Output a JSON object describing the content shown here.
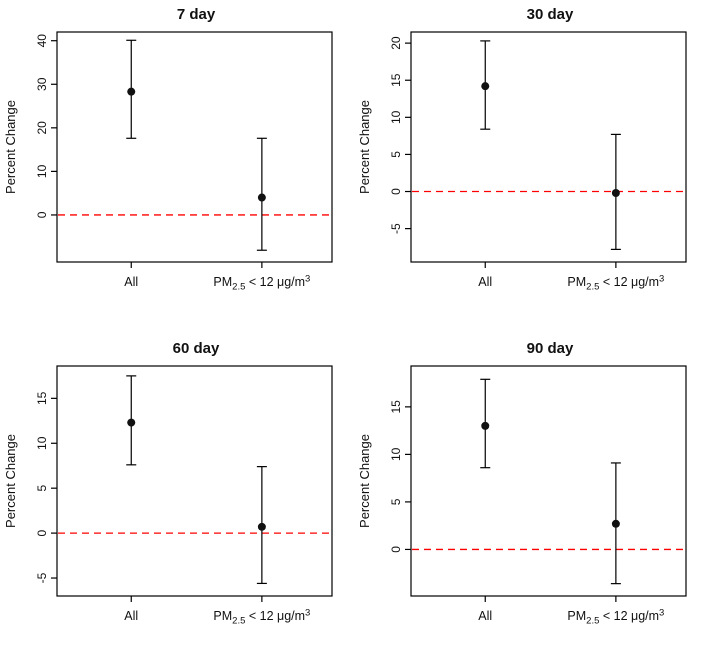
{
  "figure": {
    "background": "#ffffff",
    "axis_color": "#000000",
    "point_color": "#111111"
  },
  "chart_data": [
    {
      "type": "errorbar",
      "title": "7 day",
      "ylabel": "Percent Change",
      "ylim": [
        -10.8,
        42.0
      ],
      "yticks": [
        0,
        10,
        20,
        30,
        40
      ],
      "ref_line": {
        "y": 0,
        "color": "#ff0000",
        "style": "dashed"
      },
      "categories": [
        {
          "segments": [
            {
              "t": "All"
            }
          ]
        },
        {
          "segments": [
            {
              "t": "PM"
            },
            {
              "t": "2.5",
              "shift": "sub"
            },
            {
              "t": " < 12 μg/m"
            },
            {
              "t": "3",
              "shift": "sup"
            }
          ]
        }
      ],
      "points": [
        {
          "label": "All",
          "est": 28.3,
          "lo": 17.6,
          "hi": 40.1
        },
        {
          "label": "PM2.5 < 12 ug/m3",
          "est": 4.0,
          "lo": -8.1,
          "hi": 17.6
        }
      ]
    },
    {
      "type": "errorbar",
      "title": "30 day",
      "ylabel": "Percent Change",
      "ylim": [
        -9.5,
        21.5
      ],
      "yticks": [
        -5,
        0,
        5,
        10,
        15,
        20
      ],
      "ref_line": {
        "y": 0,
        "color": "#ff0000",
        "style": "dashed"
      },
      "categories": [
        {
          "segments": [
            {
              "t": "All"
            }
          ]
        },
        {
          "segments": [
            {
              "t": "PM"
            },
            {
              "t": "2.5",
              "shift": "sub"
            },
            {
              "t": " < 12 μg/m"
            },
            {
              "t": "3",
              "shift": "sup"
            }
          ]
        }
      ],
      "points": [
        {
          "label": "All",
          "est": 14.2,
          "lo": 8.4,
          "hi": 20.3
        },
        {
          "label": "PM2.5 < 12 ug/m3",
          "est": -0.2,
          "lo": -7.8,
          "hi": 7.7
        }
      ]
    },
    {
      "type": "errorbar",
      "title": "60 day",
      "ylabel": "Percent Change",
      "ylim": [
        -7.0,
        18.6
      ],
      "yticks": [
        -5,
        0,
        5,
        10,
        15
      ],
      "ref_line": {
        "y": 0,
        "color": "#ff0000",
        "style": "dashed"
      },
      "categories": [
        {
          "segments": [
            {
              "t": "All"
            }
          ]
        },
        {
          "segments": [
            {
              "t": "PM"
            },
            {
              "t": "2.5",
              "shift": "sub"
            },
            {
              "t": " < 12 μg/m"
            },
            {
              "t": "3",
              "shift": "sup"
            }
          ]
        }
      ],
      "points": [
        {
          "label": "All",
          "est": 12.3,
          "lo": 7.6,
          "hi": 17.5
        },
        {
          "label": "PM2.5 < 12 ug/m3",
          "est": 0.7,
          "lo": -5.6,
          "hi": 7.4
        }
      ]
    },
    {
      "type": "errorbar",
      "title": "90 day",
      "ylabel": "Percent Change",
      "ylim": [
        -4.9,
        19.3
      ],
      "yticks": [
        0,
        5,
        10,
        15
      ],
      "ref_line": {
        "y": 0,
        "color": "#ff0000",
        "style": "dashed"
      },
      "categories": [
        {
          "segments": [
            {
              "t": "All"
            }
          ]
        },
        {
          "segments": [
            {
              "t": "PM"
            },
            {
              "t": "2.5",
              "shift": "sub"
            },
            {
              "t": " < 12 μg/m"
            },
            {
              "t": "3",
              "shift": "sup"
            }
          ]
        }
      ],
      "points": [
        {
          "label": "All",
          "est": 13.0,
          "lo": 8.6,
          "hi": 17.9
        },
        {
          "label": "PM2.5 < 12 ug/m3",
          "est": 2.7,
          "lo": -3.6,
          "hi": 9.1
        }
      ]
    }
  ]
}
